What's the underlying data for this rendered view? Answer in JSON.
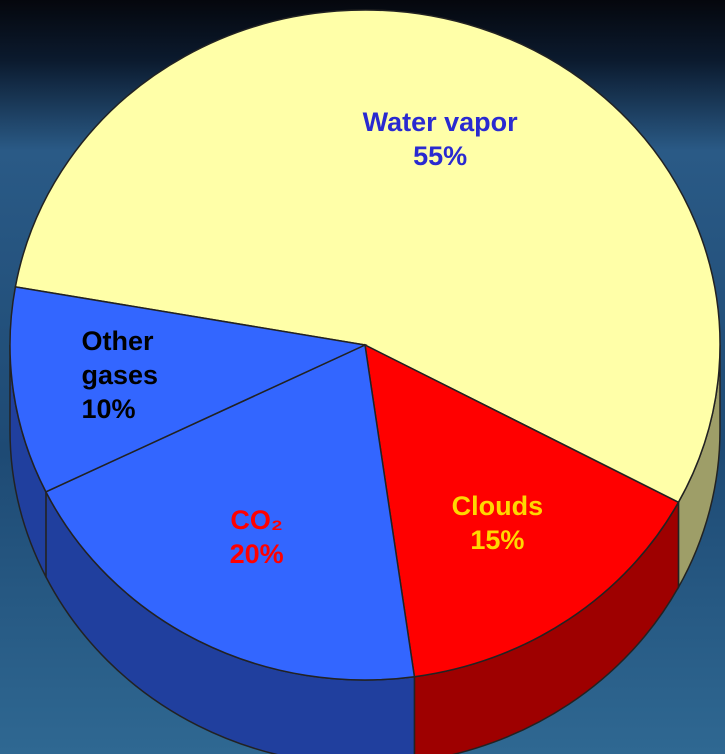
{
  "chart_data": {
    "type": "pie",
    "categories": [
      "Water vapor",
      "Clouds",
      "CO₂",
      "Other gases"
    ],
    "values": [
      55,
      15,
      20,
      10
    ],
    "value_labels": [
      "55%",
      "15%",
      "20%",
      "10%"
    ],
    "colors": [
      "#ffffa8",
      "#ff0000",
      "#3366ff",
      "#3366ff"
    ],
    "label_colors": [
      "#2a2ad0",
      "#ffd700",
      "#ff0000",
      "#000000"
    ]
  }
}
